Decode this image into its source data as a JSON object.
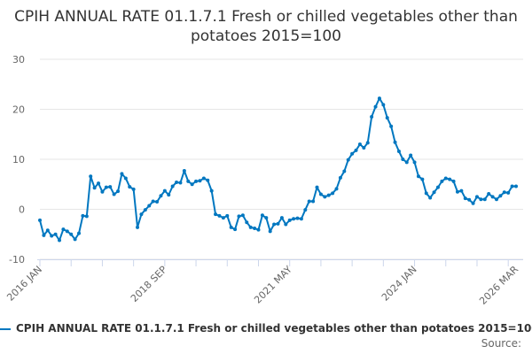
{
  "chart_data": {
    "type": "line",
    "title": "CPIH ANNUAL RATE 01.1.7.1 Fresh or chilled vegetables other than potatoes 2015=100",
    "start": "2016-01",
    "frequency": "monthly",
    "x_tick_labels": [
      "2016 JAN",
      "2018 SEP",
      "2021 MAY",
      "2024 JAN",
      "2026 MAR"
    ],
    "y_ticks": [
      -10,
      0,
      10,
      20,
      30
    ],
    "ylim": [
      -10,
      30
    ],
    "grid": true,
    "legend_position": "bottom",
    "series": [
      {
        "name": "CPIH ANNUAL RATE 01.1.7.1 Fresh or chilled vegetables other than potatoes 2015=100",
        "color": "#0077c0",
        "values": [
          -2.2,
          -5.2,
          -4.2,
          -5.3,
          -5.0,
          -6.2,
          -4.0,
          -4.4,
          -5.0,
          -6.0,
          -4.8,
          -1.3,
          -1.4,
          6.6,
          4.3,
          5.2,
          3.5,
          4.4,
          4.5,
          3.0,
          3.6,
          7.1,
          6.2,
          4.5,
          4.0,
          -3.6,
          -1.0,
          -0.1,
          0.7,
          1.6,
          1.5,
          2.7,
          3.7,
          2.9,
          4.6,
          5.4,
          5.3,
          7.7,
          5.6,
          5.0,
          5.6,
          5.7,
          6.2,
          5.8,
          3.7,
          -1.0,
          -1.3,
          -1.7,
          -1.3,
          -3.6,
          -4.0,
          -1.4,
          -1.2,
          -2.6,
          -3.6,
          -3.8,
          -4.1,
          -1.2,
          -1.7,
          -4.4,
          -3.0,
          -2.9,
          -1.7,
          -3.0,
          -2.2,
          -1.9,
          -1.8,
          -1.9,
          -0.1,
          1.6,
          1.6,
          4.4,
          3.0,
          2.5,
          2.8,
          3.2,
          4.1,
          6.3,
          7.6,
          9.9,
          11.1,
          11.8,
          13.0,
          12.3,
          13.3,
          18.5,
          20.5,
          22.2,
          20.9,
          18.3,
          16.6,
          13.4,
          11.6,
          10.0,
          9.4,
          10.8,
          9.4,
          6.6,
          6.0,
          3.2,
          2.3,
          3.4,
          4.4,
          5.6,
          6.2,
          6.0,
          5.6,
          3.5,
          3.7,
          2.2,
          1.9,
          1.2,
          2.5,
          2.0,
          2.0,
          3.1,
          2.5,
          2.0,
          2.7,
          3.4,
          3.3,
          4.6,
          4.6
        ]
      }
    ]
  },
  "source_label": "Source:"
}
